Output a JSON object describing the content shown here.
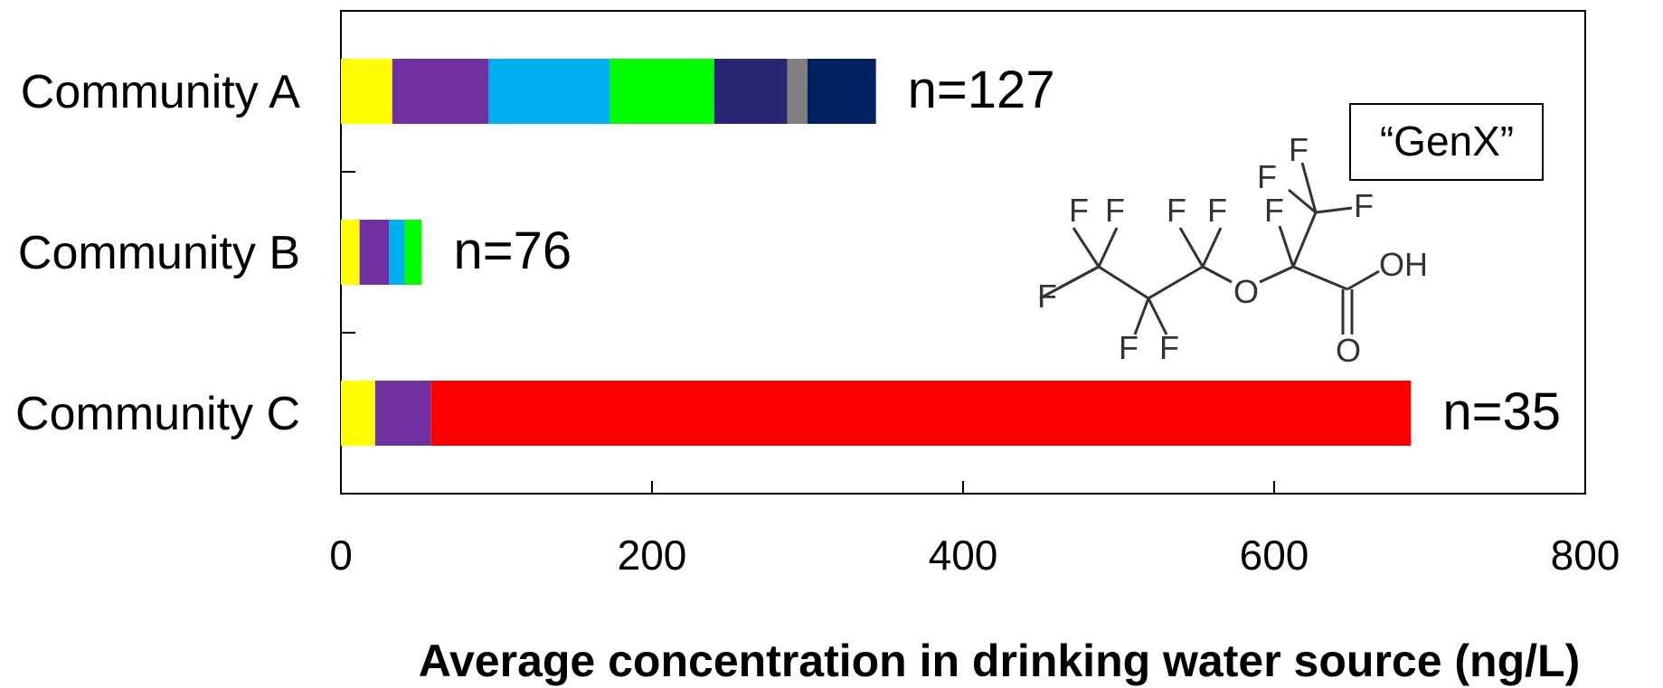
{
  "chart_data": {
    "type": "bar",
    "orientation": "horizontal",
    "stacked": true,
    "categories": [
      "Community A",
      "Community B",
      "Community C"
    ],
    "n_labels": [
      "n=127",
      "n=76",
      "n=35"
    ],
    "segment_colors": [
      "#ffff00",
      "#7030a0",
      "#00b0f0",
      "#00ff00",
      "#262673",
      "#808080",
      "#002060",
      "#ff0000"
    ],
    "series": [
      {
        "values": [
          33,
          12,
          22
        ]
      },
      {
        "values": [
          62,
          19,
          36
        ]
      },
      {
        "values": [
          78,
          10,
          0
        ]
      },
      {
        "values": [
          67,
          11,
          0
        ]
      },
      {
        "values": [
          47,
          0,
          0
        ]
      },
      {
        "values": [
          13,
          0,
          0
        ]
      },
      {
        "values": [
          44,
          0,
          0
        ]
      },
      {
        "values": [
          0,
          0,
          630
        ]
      }
    ],
    "xlim": [
      0,
      800
    ],
    "xticks": [
      "0",
      "200",
      "400",
      "600",
      "800"
    ],
    "xlabel": "Average concentration in drinking water source (ng/L)",
    "ylabel": "",
    "grid": false,
    "legend": "none"
  },
  "annotation": {
    "genx_label": "“GenX”",
    "molecule_atoms": {
      "fluorine": "F",
      "oxygen": "O",
      "hydroxyl": "OH"
    }
  }
}
